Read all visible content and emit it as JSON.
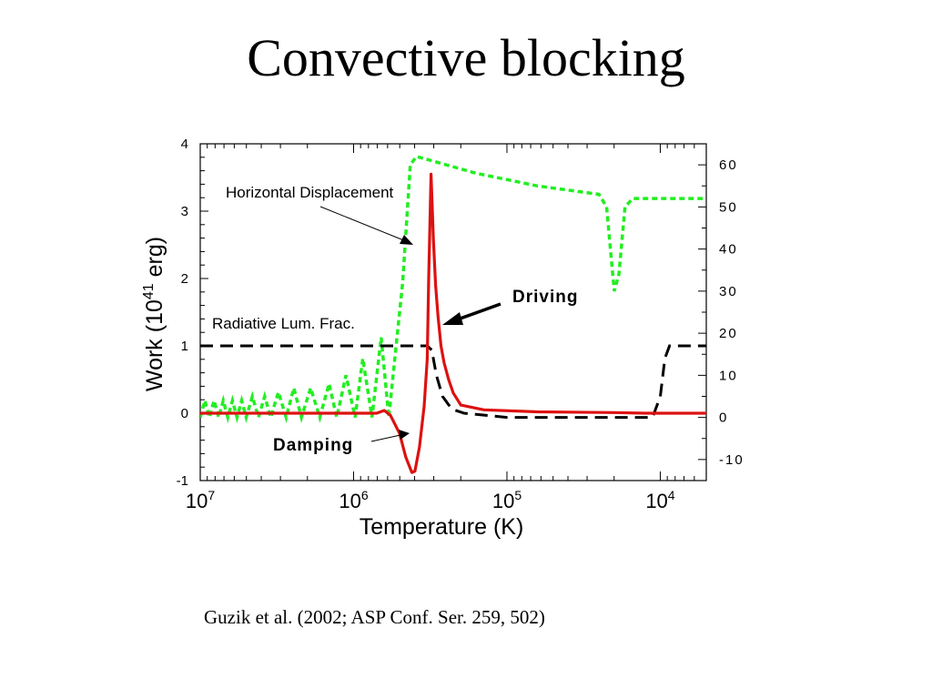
{
  "slide": {
    "title": "Convective blocking",
    "citation": "Guzik et al. (2002; ASP Conf. Ser. 259,  502)"
  },
  "colors": {
    "horizontal_displacement": "#22ee22",
    "work": "#dd1111",
    "radiative_lum_frac": "#000000"
  },
  "chart_data": {
    "type": "line",
    "xlabel": "Temperature  (K)",
    "ylabel_prefix": "Work  (10",
    "ylabel_exp": "41",
    "ylabel_suffix": " erg)",
    "x_scale": "log10, decreasing",
    "xlim_log10": [
      7.0,
      3.7
    ],
    "ylim": [
      -1,
      4
    ],
    "y2lim": [
      -15,
      65
    ],
    "x_ticks": [
      {
        "log": 7,
        "base": "10",
        "exp": "7"
      },
      {
        "log": 6,
        "base": "10",
        "exp": "6"
      },
      {
        "log": 5,
        "base": "10",
        "exp": "5"
      },
      {
        "log": 4,
        "base": "10",
        "exp": "4"
      }
    ],
    "y_ticks": [
      4,
      3,
      2,
      1,
      0,
      -1
    ],
    "y_tick_labels": [
      "4",
      "3",
      "2",
      "1",
      "0",
      "-1"
    ],
    "y2_ticks": [
      60,
      50,
      40,
      30,
      20,
      10,
      0,
      -10
    ],
    "y2_tick_labels": [
      "60",
      "50",
      "40",
      "30",
      "20",
      "10",
      "0",
      "-10"
    ],
    "annotations": {
      "horizontal_displacement": "Horizontal Displacement",
      "radiative_lum_frac": "Radiative Lum. Frac.",
      "driving": "Driving",
      "damping": "Damping"
    },
    "series": [
      {
        "name": "Horizontal Displacement",
        "axis": "right",
        "style": "dotted",
        "points": [
          [
            7.0,
            0
          ],
          [
            6.97,
            4
          ],
          [
            6.94,
            0
          ],
          [
            6.91,
            4
          ],
          [
            6.88,
            0
          ],
          [
            6.85,
            4
          ],
          [
            6.82,
            0
          ],
          [
            6.79,
            4
          ],
          [
            6.76,
            0
          ],
          [
            6.73,
            4
          ],
          [
            6.7,
            0
          ],
          [
            6.66,
            5
          ],
          [
            6.62,
            0
          ],
          [
            6.58,
            5
          ],
          [
            6.54,
            0
          ],
          [
            6.49,
            6
          ],
          [
            6.44,
            0
          ],
          [
            6.39,
            7
          ],
          [
            6.34,
            0
          ],
          [
            6.28,
            7
          ],
          [
            6.22,
            0
          ],
          [
            6.16,
            8
          ],
          [
            6.11,
            0
          ],
          [
            6.05,
            10
          ],
          [
            5.99,
            0
          ],
          [
            5.94,
            14
          ],
          [
            5.88,
            0
          ],
          [
            5.82,
            19
          ],
          [
            5.77,
            0
          ],
          [
            5.72,
            18
          ],
          [
            5.68,
            32
          ],
          [
            5.63,
            60
          ],
          [
            5.59,
            62
          ],
          [
            5.2,
            58
          ],
          [
            4.8,
            55
          ],
          [
            4.4,
            53
          ],
          [
            4.35,
            50
          ],
          [
            4.3,
            30
          ],
          [
            4.27,
            34
          ],
          [
            4.23,
            50
          ],
          [
            4.18,
            52
          ],
          [
            3.7,
            52
          ]
        ]
      },
      {
        "name": "Work",
        "axis": "left",
        "style": "solid",
        "points": [
          [
            7.0,
            0
          ],
          [
            6.3,
            0
          ],
          [
            5.85,
            0
          ],
          [
            5.8,
            0.04
          ],
          [
            5.76,
            -0.03
          ],
          [
            5.7,
            -0.3
          ],
          [
            5.66,
            -0.65
          ],
          [
            5.62,
            -0.88
          ],
          [
            5.6,
            -0.86
          ],
          [
            5.57,
            -0.5
          ],
          [
            5.54,
            0.1
          ],
          [
            5.52,
            0.8
          ],
          [
            5.51,
            2.0
          ],
          [
            5.495,
            3.55
          ],
          [
            5.48,
            2.6
          ],
          [
            5.465,
            1.9
          ],
          [
            5.45,
            1.45
          ],
          [
            5.43,
            1.0
          ],
          [
            5.41,
            0.75
          ],
          [
            5.38,
            0.5
          ],
          [
            5.35,
            0.3
          ],
          [
            5.3,
            0.12
          ],
          [
            5.15,
            0.05
          ],
          [
            4.8,
            0.02
          ],
          [
            4.3,
            0.01
          ],
          [
            4.1,
            0.0
          ],
          [
            3.7,
            0.0
          ]
        ]
      },
      {
        "name": "Radiative Lum. Frac.",
        "axis": "right",
        "style": "dashed",
        "points": [
          [
            7.0,
            17
          ],
          [
            5.52,
            17
          ],
          [
            5.49,
            16
          ],
          [
            5.46,
            10
          ],
          [
            5.42,
            5
          ],
          [
            5.36,
            2
          ],
          [
            5.28,
            1
          ],
          [
            5.0,
            0
          ],
          [
            4.2,
            0
          ],
          [
            4.05,
            0
          ],
          [
            4.0,
            5
          ],
          [
            3.97,
            14
          ],
          [
            3.94,
            17
          ],
          [
            3.7,
            17
          ]
        ]
      }
    ]
  }
}
